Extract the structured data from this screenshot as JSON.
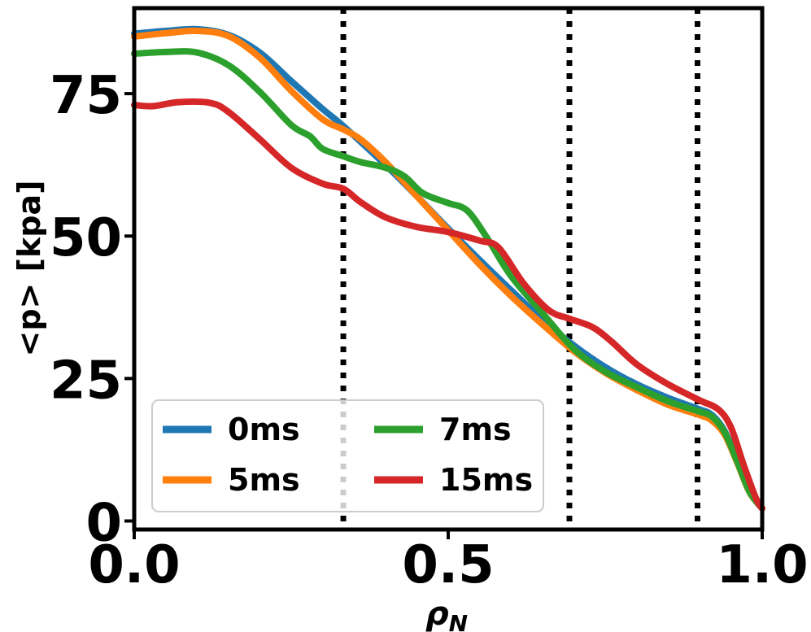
{
  "chart_data": {
    "type": "line",
    "title": "",
    "xlabel": "ρ",
    "xlabel_subscript": "N",
    "ylabel": "<p> [kpa]",
    "xlim": [
      0.0,
      1.0
    ],
    "ylim": [
      -1.5,
      90
    ],
    "x_ticks": [
      0.0,
      0.5,
      1.0
    ],
    "x_tick_labels": [
      "0.0",
      "0.5",
      "1.0"
    ],
    "y_ticks": [
      0,
      25,
      50,
      75
    ],
    "y_tick_labels": [
      "0",
      "25",
      "50",
      "75"
    ],
    "grid": false,
    "legend": {
      "placement": "lower-left",
      "columns": 2
    },
    "vertical_lines": [
      {
        "x": 0.333,
        "style": "dotted",
        "color": "#000000"
      },
      {
        "x": 0.693,
        "style": "dotted",
        "color": "#000000"
      },
      {
        "x": 0.897,
        "style": "dotted",
        "color": "#000000"
      }
    ],
    "series": [
      {
        "name": "0ms",
        "color": "#1f77b4",
        "points": [
          [
            0.0,
            85.5
          ],
          [
            0.05,
            86.0
          ],
          [
            0.1,
            86.3
          ],
          [
            0.15,
            85.3
          ],
          [
            0.2,
            82.2
          ],
          [
            0.25,
            77.2
          ],
          [
            0.3,
            72.3
          ],
          [
            0.333,
            69.3
          ],
          [
            0.4,
            62.5
          ],
          [
            0.45,
            57.0
          ],
          [
            0.5,
            51.3
          ],
          [
            0.55,
            45.8
          ],
          [
            0.6,
            40.5
          ],
          [
            0.65,
            35.3
          ],
          [
            0.7,
            30.8
          ],
          [
            0.75,
            27.0
          ],
          [
            0.8,
            24.0
          ],
          [
            0.85,
            21.6
          ],
          [
            0.9,
            19.6
          ],
          [
            0.92,
            18.6
          ],
          [
            0.94,
            15.8
          ],
          [
            0.96,
            10.6
          ],
          [
            0.98,
            5.2
          ],
          [
            1.0,
            2.2
          ]
        ]
      },
      {
        "name": "5ms",
        "color": "#ff7f0e",
        "points": [
          [
            0.0,
            85.0
          ],
          [
            0.05,
            85.6
          ],
          [
            0.1,
            86.0
          ],
          [
            0.15,
            85.1
          ],
          [
            0.2,
            81.3
          ],
          [
            0.25,
            75.5
          ],
          [
            0.3,
            70.5
          ],
          [
            0.333,
            68.7
          ],
          [
            0.36,
            67.0
          ],
          [
            0.4,
            63.0
          ],
          [
            0.45,
            57.0
          ],
          [
            0.5,
            51.0
          ],
          [
            0.55,
            45.0
          ],
          [
            0.6,
            39.5
          ],
          [
            0.65,
            34.5
          ],
          [
            0.7,
            29.8
          ],
          [
            0.75,
            26.0
          ],
          [
            0.8,
            23.0
          ],
          [
            0.85,
            20.4
          ],
          [
            0.9,
            18.6
          ],
          [
            0.92,
            17.6
          ],
          [
            0.94,
            15.2
          ],
          [
            0.96,
            10.3
          ],
          [
            0.98,
            5.0
          ],
          [
            1.0,
            2.2
          ]
        ]
      },
      {
        "name": "7ms",
        "color": "#2ca02c",
        "points": [
          [
            0.0,
            82.0
          ],
          [
            0.05,
            82.3
          ],
          [
            0.1,
            82.2
          ],
          [
            0.15,
            80.0
          ],
          [
            0.2,
            75.3
          ],
          [
            0.25,
            69.5
          ],
          [
            0.28,
            67.5
          ],
          [
            0.3,
            65.3
          ],
          [
            0.333,
            64.0
          ],
          [
            0.36,
            63.0
          ],
          [
            0.4,
            62.0
          ],
          [
            0.43,
            60.5
          ],
          [
            0.46,
            57.5
          ],
          [
            0.5,
            55.8
          ],
          [
            0.53,
            54.5
          ],
          [
            0.56,
            50.0
          ],
          [
            0.6,
            43.0
          ],
          [
            0.65,
            36.5
          ],
          [
            0.7,
            30.2
          ],
          [
            0.75,
            26.2
          ],
          [
            0.8,
            23.5
          ],
          [
            0.85,
            21.0
          ],
          [
            0.9,
            19.2
          ],
          [
            0.92,
            18.3
          ],
          [
            0.94,
            15.6
          ],
          [
            0.96,
            10.5
          ],
          [
            0.98,
            5.1
          ],
          [
            1.0,
            2.2
          ]
        ]
      },
      {
        "name": "15ms",
        "color": "#d62728",
        "points": [
          [
            0.0,
            73.0
          ],
          [
            0.03,
            72.8
          ],
          [
            0.07,
            73.5
          ],
          [
            0.12,
            73.4
          ],
          [
            0.15,
            71.8
          ],
          [
            0.2,
            67.0
          ],
          [
            0.25,
            62.0
          ],
          [
            0.3,
            59.2
          ],
          [
            0.333,
            58.3
          ],
          [
            0.36,
            56.0
          ],
          [
            0.4,
            53.3
          ],
          [
            0.45,
            51.6
          ],
          [
            0.5,
            50.7
          ],
          [
            0.55,
            49.2
          ],
          [
            0.58,
            48.0
          ],
          [
            0.62,
            41.7
          ],
          [
            0.66,
            37.0
          ],
          [
            0.693,
            35.5
          ],
          [
            0.73,
            34.0
          ],
          [
            0.76,
            31.5
          ],
          [
            0.8,
            27.5
          ],
          [
            0.85,
            24.0
          ],
          [
            0.9,
            21.2
          ],
          [
            0.93,
            19.6
          ],
          [
            0.95,
            16.5
          ],
          [
            0.97,
            10.0
          ],
          [
            0.99,
            4.0
          ],
          [
            1.0,
            2.2
          ]
        ]
      }
    ]
  }
}
